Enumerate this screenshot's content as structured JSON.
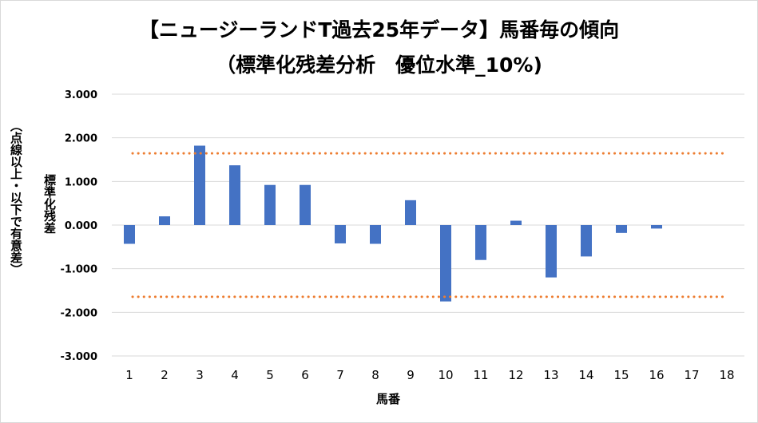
{
  "chart_data": {
    "type": "bar",
    "title": "【ニュージーランドT過去25年データ】馬番毎の傾向",
    "subtitle": "（標準化残差分析　優位水準_10%)",
    "xlabel": "馬番",
    "ylabel": "標準化残差",
    "ylabel_note": "（点線以上・以下で有意差）",
    "categories": [
      "1",
      "2",
      "3",
      "4",
      "5",
      "6",
      "7",
      "8",
      "9",
      "10",
      "11",
      "12",
      "13",
      "14",
      "15",
      "16",
      "17",
      "18"
    ],
    "values": [
      -0.43,
      0.2,
      1.82,
      1.37,
      0.92,
      0.92,
      -0.42,
      -0.43,
      0.57,
      -1.75,
      -0.8,
      0.1,
      -1.2,
      -0.72,
      -0.18,
      -0.08,
      0,
      0
    ],
    "ylim": [
      -3,
      3
    ],
    "yticks": [
      3,
      2,
      1,
      0,
      -1,
      -2,
      -3
    ],
    "ytick_labels": [
      "3.000",
      "2.000",
      "1.000",
      "0.000",
      "-1.000",
      "-2.000",
      "-3.000"
    ],
    "threshold_upper": 1.645,
    "threshold_lower": -1.645,
    "bar_color": "#4472c4",
    "threshold_color": "#ed7d31",
    "grid_color": "#d9d9d9",
    "grid": true
  }
}
